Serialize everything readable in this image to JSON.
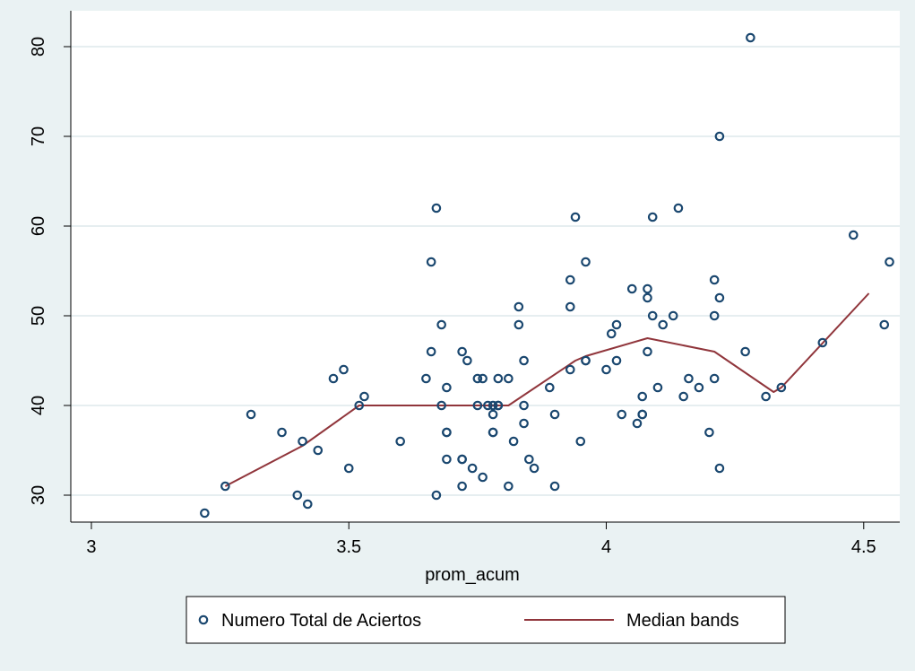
{
  "chart_data": {
    "type": "scatter",
    "xlabel": "prom_acum",
    "ylabel": "",
    "xlim": [
      2.96,
      4.57
    ],
    "ylim": [
      27,
      84
    ],
    "xticks": [
      3,
      3.5,
      4,
      4.5
    ],
    "xtick_labels": [
      "3",
      "3.5",
      "4",
      "4.5"
    ],
    "yticks": [
      30,
      40,
      50,
      60,
      70,
      80
    ],
    "ytick_labels": [
      "30",
      "40",
      "50",
      "60",
      "70",
      "80"
    ],
    "grid": "horizontal",
    "legend_position": "bottom",
    "colors": {
      "background": "#eaf2f3",
      "plot_background": "#ffffff",
      "marker": "#1a476f",
      "line": "#90353b",
      "grid": "#e6eef0"
    },
    "series": [
      {
        "name": "Numero Total de Aciertos",
        "kind": "scatter",
        "points": [
          [
            3.22,
            28
          ],
          [
            3.26,
            31
          ],
          [
            3.31,
            39
          ],
          [
            3.37,
            37
          ],
          [
            3.4,
            30
          ],
          [
            3.41,
            36
          ],
          [
            3.42,
            29
          ],
          [
            3.44,
            35
          ],
          [
            3.47,
            43
          ],
          [
            3.49,
            44
          ],
          [
            3.5,
            33
          ],
          [
            3.52,
            40
          ],
          [
            3.53,
            41
          ],
          [
            3.6,
            36
          ],
          [
            3.65,
            43
          ],
          [
            3.66,
            56
          ],
          [
            3.66,
            46
          ],
          [
            3.67,
            62
          ],
          [
            3.67,
            30
          ],
          [
            3.68,
            49
          ],
          [
            3.68,
            40
          ],
          [
            3.69,
            42
          ],
          [
            3.69,
            37
          ],
          [
            3.69,
            37
          ],
          [
            3.69,
            34
          ],
          [
            3.72,
            46
          ],
          [
            3.72,
            34
          ],
          [
            3.72,
            34
          ],
          [
            3.72,
            31
          ],
          [
            3.73,
            45
          ],
          [
            3.74,
            33
          ],
          [
            3.75,
            43
          ],
          [
            3.75,
            40
          ],
          [
            3.76,
            43
          ],
          [
            3.76,
            32
          ],
          [
            3.77,
            40
          ],
          [
            3.78,
            40
          ],
          [
            3.78,
            39
          ],
          [
            3.78,
            37
          ],
          [
            3.78,
            37
          ],
          [
            3.79,
            43
          ],
          [
            3.79,
            40
          ],
          [
            3.79,
            40
          ],
          [
            3.81,
            43
          ],
          [
            3.81,
            31
          ],
          [
            3.82,
            36
          ],
          [
            3.83,
            51
          ],
          [
            3.83,
            49
          ],
          [
            3.84,
            45
          ],
          [
            3.84,
            40
          ],
          [
            3.84,
            38
          ],
          [
            3.85,
            34
          ],
          [
            3.86,
            33
          ],
          [
            3.89,
            42
          ],
          [
            3.9,
            39
          ],
          [
            3.9,
            31
          ],
          [
            3.93,
            54
          ],
          [
            3.93,
            51
          ],
          [
            3.93,
            44
          ],
          [
            3.94,
            61
          ],
          [
            3.95,
            36
          ],
          [
            3.96,
            56
          ],
          [
            3.96,
            45
          ],
          [
            3.96,
            45
          ],
          [
            4.0,
            44
          ],
          [
            4.01,
            48
          ],
          [
            4.02,
            49
          ],
          [
            4.02,
            45
          ],
          [
            4.03,
            39
          ],
          [
            4.05,
            53
          ],
          [
            4.06,
            38
          ],
          [
            4.07,
            41
          ],
          [
            4.07,
            39
          ],
          [
            4.07,
            39
          ],
          [
            4.08,
            53
          ],
          [
            4.08,
            52
          ],
          [
            4.08,
            46
          ],
          [
            4.09,
            61
          ],
          [
            4.09,
            50
          ],
          [
            4.1,
            42
          ],
          [
            4.11,
            49
          ],
          [
            4.13,
            50
          ],
          [
            4.14,
            62
          ],
          [
            4.15,
            41
          ],
          [
            4.16,
            43
          ],
          [
            4.18,
            42
          ],
          [
            4.2,
            37
          ],
          [
            4.21,
            54
          ],
          [
            4.21,
            50
          ],
          [
            4.21,
            43
          ],
          [
            4.22,
            70
          ],
          [
            4.22,
            52
          ],
          [
            4.22,
            33
          ],
          [
            4.27,
            46
          ],
          [
            4.28,
            81
          ],
          [
            4.31,
            41
          ],
          [
            4.34,
            42
          ],
          [
            4.42,
            47
          ],
          [
            4.48,
            59
          ],
          [
            4.54,
            49
          ],
          [
            4.55,
            56
          ]
        ]
      },
      {
        "name": "Median bands",
        "kind": "line",
        "points": [
          [
            3.26,
            31
          ],
          [
            3.41,
            35.5
          ],
          [
            3.52,
            40
          ],
          [
            3.7,
            40
          ],
          [
            3.81,
            40
          ],
          [
            3.94,
            45
          ],
          [
            3.96,
            45.5
          ],
          [
            4.08,
            47.5
          ],
          [
            4.21,
            46
          ],
          [
            4.325,
            41.5
          ],
          [
            4.34,
            42
          ],
          [
            4.51,
            52.5
          ]
        ]
      }
    ]
  }
}
